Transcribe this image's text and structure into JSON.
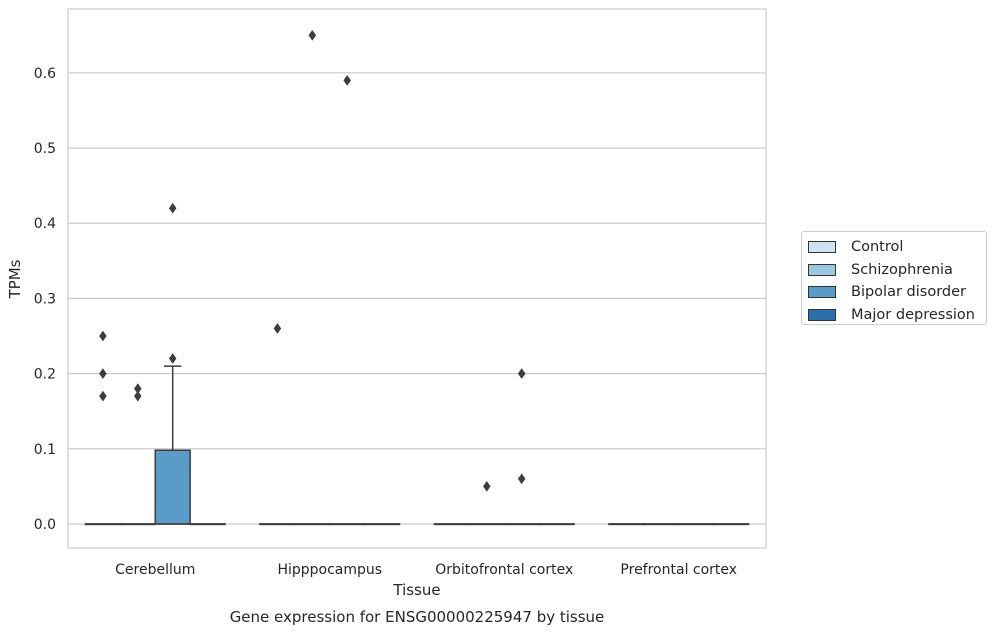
{
  "chart_data": {
    "type": "boxplot",
    "caption": "Gene expression for ENSG00000225947 by tissue",
    "xlabel": "Tissue",
    "ylabel": "TPMs",
    "ylim": [
      -0.032,
      0.685
    ],
    "yticks": [
      "0.0",
      "0.1",
      "0.2",
      "0.3",
      "0.4",
      "0.5",
      "0.6"
    ],
    "categories": [
      "Cerebellum",
      "Hipppocampus",
      "Orbitofrontal cortex",
      "Prefrontal cortex"
    ],
    "grid": true,
    "legend_position": "right",
    "series": [
      {
        "name": "Control",
        "color": "#d0e1f2",
        "boxes": [
          {
            "category": "Cerebellum",
            "q1": 0,
            "median": 0,
            "q3": 0,
            "whisker_low": 0,
            "whisker_high": 0,
            "outliers": [
              0.17,
              0.2,
              0.25
            ]
          },
          {
            "category": "Hipppocampus",
            "q1": 0,
            "median": 0,
            "q3": 0,
            "whisker_low": 0,
            "whisker_high": 0,
            "outliers": [
              0.26
            ]
          },
          {
            "category": "Orbitofrontal cortex",
            "q1": 0,
            "median": 0,
            "q3": 0,
            "whisker_low": 0,
            "whisker_high": 0,
            "outliers": []
          },
          {
            "category": "Prefrontal cortex",
            "q1": 0,
            "median": 0,
            "q3": 0,
            "whisker_low": 0,
            "whisker_high": 0,
            "outliers": []
          }
        ]
      },
      {
        "name": "Schizophrenia",
        "color": "#9ac8e0",
        "boxes": [
          {
            "category": "Cerebellum",
            "q1": 0,
            "median": 0,
            "q3": 0,
            "whisker_low": 0,
            "whisker_high": 0,
            "outliers": [
              0.17,
              0.18
            ]
          },
          {
            "category": "Hipppocampus",
            "q1": 0,
            "median": 0,
            "q3": 0,
            "whisker_low": 0,
            "whisker_high": 0,
            "outliers": [
              0.65
            ]
          },
          {
            "category": "Orbitofrontal cortex",
            "q1": 0,
            "median": 0,
            "q3": 0,
            "whisker_low": 0,
            "whisker_high": 0,
            "outliers": [
              0.05
            ]
          },
          {
            "category": "Prefrontal cortex",
            "q1": 0,
            "median": 0,
            "q3": 0,
            "whisker_low": 0,
            "whisker_high": 0,
            "outliers": []
          }
        ]
      },
      {
        "name": "Bipolar disorder",
        "color": "#5a9bc8",
        "boxes": [
          {
            "category": "Cerebellum",
            "q1": 0,
            "median": 0,
            "q3": 0.098,
            "whisker_low": 0,
            "whisker_high": 0.21,
            "outliers": [
              0.22,
              0.42
            ]
          },
          {
            "category": "Hipppocampus",
            "q1": 0,
            "median": 0,
            "q3": 0,
            "whisker_low": 0,
            "whisker_high": 0,
            "outliers": [
              0.59
            ]
          },
          {
            "category": "Orbitofrontal cortex",
            "q1": 0,
            "median": 0,
            "q3": 0,
            "whisker_low": 0,
            "whisker_high": 0,
            "outliers": [
              0.2,
              0.06
            ]
          },
          {
            "category": "Prefrontal cortex",
            "q1": 0,
            "median": 0,
            "q3": 0,
            "whisker_low": 0,
            "whisker_high": 0,
            "outliers": []
          }
        ]
      },
      {
        "name": "Major depression",
        "color": "#2d6ead",
        "boxes": [
          {
            "category": "Cerebellum",
            "q1": 0,
            "median": 0,
            "q3": 0,
            "whisker_low": 0,
            "whisker_high": 0,
            "outliers": []
          },
          {
            "category": "Hipppocampus",
            "q1": 0,
            "median": 0,
            "q3": 0,
            "whisker_low": 0,
            "whisker_high": 0,
            "outliers": []
          },
          {
            "category": "Orbitofrontal cortex",
            "q1": 0,
            "median": 0,
            "q3": 0,
            "whisker_low": 0,
            "whisker_high": 0,
            "outliers": []
          },
          {
            "category": "Prefrontal cortex",
            "q1": 0,
            "median": 0,
            "q3": 0,
            "whisker_low": 0,
            "whisker_high": 0,
            "outliers": []
          }
        ]
      }
    ]
  }
}
